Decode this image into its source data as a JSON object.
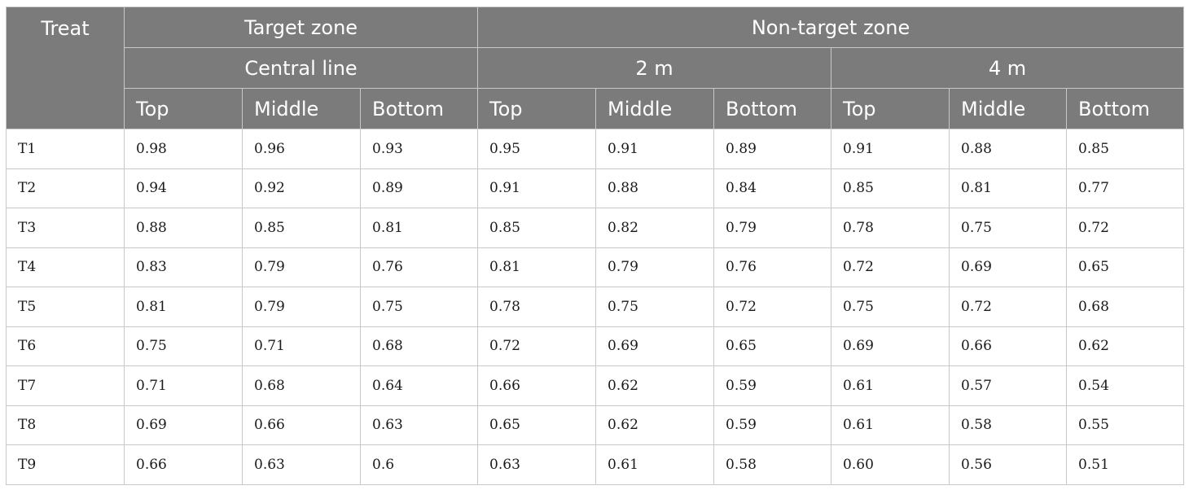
{
  "table": {
    "treat_header": "Treat",
    "target_zone": "Target zone",
    "non_target_zone": "Non-target zone",
    "central_line": "Central line",
    "dist_2m": "2 m",
    "dist_4m": "4 m",
    "positions": [
      "Top",
      "Middle",
      "Bottom",
      "Top",
      "Middle",
      "Bottom",
      "Top",
      "Middle",
      "Bottom"
    ],
    "rows": [
      {
        "treat": "T1",
        "values": [
          "0.98",
          "0.96",
          "0.93",
          "0.95",
          "0.91",
          "0.89",
          "0.91",
          "0.88",
          "0.85"
        ]
      },
      {
        "treat": "T2",
        "values": [
          "0.94",
          "0.92",
          "0.89",
          "0.91",
          "0.88",
          "0.84",
          "0.85",
          "0.81",
          "0.77"
        ]
      },
      {
        "treat": "T3",
        "values": [
          "0.88",
          "0.85",
          "0.81",
          "0.85",
          "0.82",
          "0.79",
          "0.78",
          "0.75",
          "0.72"
        ]
      },
      {
        "treat": "T4",
        "values": [
          "0.83",
          "0.79",
          "0.76",
          "0.81",
          "0.79",
          "0.76",
          "0.72",
          "0.69",
          "0.65"
        ]
      },
      {
        "treat": "T5",
        "values": [
          "0.81",
          "0.79",
          "0.75",
          "0.78",
          "0.75",
          "0.72",
          "0.75",
          "0.72",
          "0.68"
        ]
      },
      {
        "treat": "T6",
        "values": [
          "0.75",
          "0.71",
          "0.68",
          "0.72",
          "0.69",
          "0.65",
          "0.69",
          "0.66",
          "0.62"
        ]
      },
      {
        "treat": "T7",
        "values": [
          "0.71",
          "0.68",
          "0.64",
          "0.66",
          "0.62",
          "0.59",
          "0.61",
          "0.57",
          "0.54"
        ]
      },
      {
        "treat": "T8",
        "values": [
          "0.69",
          "0.66",
          "0.63",
          "0.65",
          "0.62",
          "0.59",
          "0.61",
          "0.58",
          "0.55"
        ]
      },
      {
        "treat": "T9",
        "values": [
          "0.66",
          "0.63",
          "0.6",
          "0.63",
          "0.61",
          "0.58",
          "0.60",
          "0.56",
          "0.51"
        ]
      }
    ]
  },
  "colors": {
    "header_bg": "#7a7b7a",
    "header_text": "#ffffff",
    "grid_line": "#c8c8c8"
  }
}
